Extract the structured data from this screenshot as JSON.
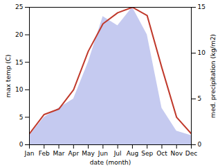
{
  "chart_data": {
    "type": "line",
    "categories": [
      "Jan",
      "Feb",
      "Mar",
      "Apr",
      "May",
      "Jun",
      "Jul",
      "Aug",
      "Sep",
      "Oct",
      "Nov",
      "Dec"
    ],
    "xlabel": "date (month)",
    "ylabel": "max temp (C)",
    "y2label": "med. precipitation (kg/m2)",
    "ylim": [
      0,
      25
    ],
    "yticks": [
      0,
      5,
      10,
      15,
      20,
      25
    ],
    "y2lim": [
      0,
      15
    ],
    "y2ticks": [
      0,
      5,
      10,
      15
    ],
    "series": [
      {
        "type": "area",
        "axis": "y2",
        "color": "#c5caf0",
        "values": [
          1,
          3,
          4,
          5,
          9,
          14,
          13,
          15,
          12,
          4,
          1.5,
          1
        ]
      },
      {
        "type": "line",
        "color": "#c0392b",
        "values": [
          2,
          5.5,
          6.5,
          10,
          17,
          22,
          24,
          25,
          23.5,
          14,
          5,
          2
        ]
      }
    ]
  }
}
